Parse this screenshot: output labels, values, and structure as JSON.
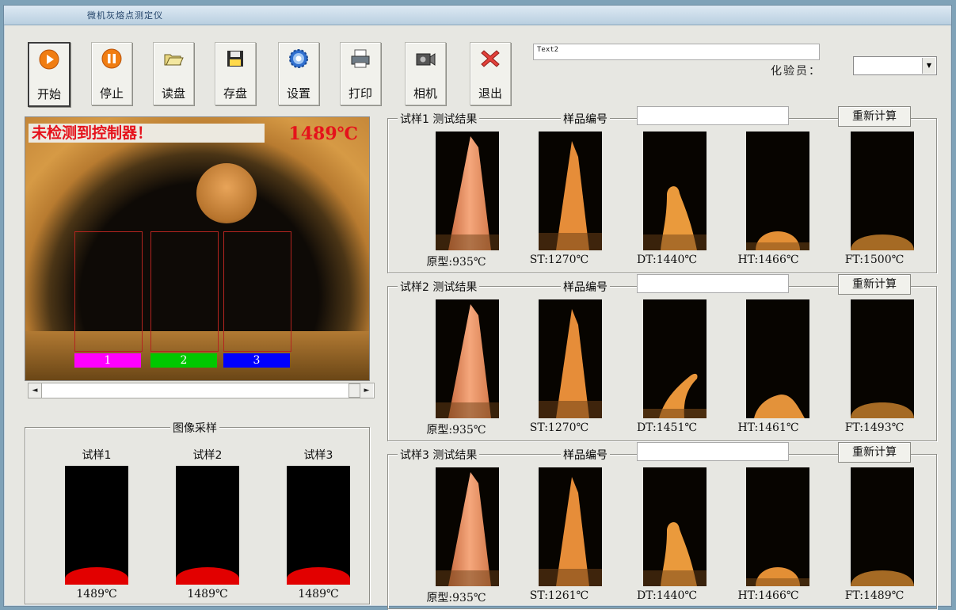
{
  "window": {
    "title": "微机灰熔点测定仪"
  },
  "toolbar": [
    {
      "label": "开始",
      "icon": "play-icon",
      "active": true
    },
    {
      "label": "停止",
      "icon": "pause-icon",
      "active": false
    },
    {
      "label": "读盘",
      "icon": "folder-open-icon",
      "active": false
    },
    {
      "label": "存盘",
      "icon": "save-disk-icon",
      "active": false
    },
    {
      "label": "设置",
      "icon": "gear-icon",
      "active": false
    },
    {
      "label": "打印",
      "icon": "printer-icon",
      "active": false
    },
    {
      "label": "相机",
      "icon": "camera-icon",
      "active": false
    },
    {
      "label": "退出",
      "icon": "exit-x-icon",
      "active": false
    }
  ],
  "text2": {
    "value": "Text2"
  },
  "analyst": {
    "label": "化验员：",
    "value": ""
  },
  "camera": {
    "status": "未检测到控制器！",
    "temperature": "1489℃",
    "slots": [
      {
        "label": "1",
        "color": "#ff00ff"
      },
      {
        "label": "2",
        "color": "#00c800"
      },
      {
        "label": "3",
        "color": "#0000ff"
      }
    ]
  },
  "sampling": {
    "legend": "图像采样",
    "samples": [
      {
        "name": "试样1",
        "temp": "1489℃"
      },
      {
        "name": "试样2",
        "temp": "1489℃"
      },
      {
        "name": "试样3",
        "temp": "1489℃"
      }
    ]
  },
  "results": [
    {
      "title": "试样1 测试结果",
      "sample_no_label": "样品编号",
      "sample_no_value": "",
      "recalc": "重新计算",
      "stages": [
        {
          "caption": "原型:935℃",
          "shape": "cone"
        },
        {
          "caption": "ST:1270℃",
          "shape": "cone-small"
        },
        {
          "caption": "DT:1440℃",
          "shape": "bent"
        },
        {
          "caption": "HT:1466℃",
          "shape": "dome"
        },
        {
          "caption": "FT:1500℃",
          "shape": "flat"
        }
      ]
    },
    {
      "title": "试样2 测试结果",
      "sample_no_label": "样品编号",
      "sample_no_value": "",
      "recalc": "重新计算",
      "stages": [
        {
          "caption": "原型:935℃",
          "shape": "cone"
        },
        {
          "caption": "ST:1270℃",
          "shape": "cone-small"
        },
        {
          "caption": "DT:1451℃",
          "shape": "hook"
        },
        {
          "caption": "HT:1461℃",
          "shape": "lump"
        },
        {
          "caption": "FT:1493℃",
          "shape": "flat"
        }
      ]
    },
    {
      "title": "试样3 测试结果",
      "sample_no_label": "样品编号",
      "sample_no_value": "",
      "recalc": "重新计算",
      "stages": [
        {
          "caption": "原型:935℃",
          "shape": "cone"
        },
        {
          "caption": "ST:1261℃",
          "shape": "cone-small"
        },
        {
          "caption": "DT:1440℃",
          "shape": "bent"
        },
        {
          "caption": "HT:1466℃",
          "shape": "dome"
        },
        {
          "caption": "FT:1489℃",
          "shape": "flat"
        }
      ]
    }
  ]
}
